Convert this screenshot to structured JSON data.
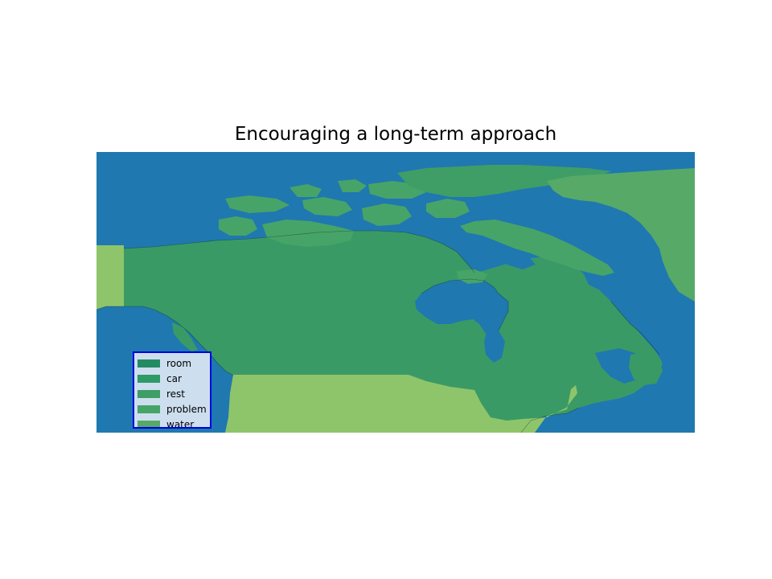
{
  "map": {
    "title": "Encouraging a long-term approach",
    "colors": {
      "ocean": "#1f78b0",
      "room": "#238b63",
      "car": "#2e9a67",
      "rest": "#3e9e66",
      "problem": "#47a468",
      "water": "#57a968",
      "usa": "#8ec56a",
      "coast": "#0f2a1e"
    },
    "legend": {
      "border_color": "#0000e0",
      "items": [
        {
          "label": "room",
          "color": "#238b63"
        },
        {
          "label": "car",
          "color": "#2e9a67"
        },
        {
          "label": "rest",
          "color": "#3e9e66"
        },
        {
          "label": "problem",
          "color": "#47a468"
        },
        {
          "label": "water",
          "color": "#57a968"
        }
      ]
    }
  }
}
